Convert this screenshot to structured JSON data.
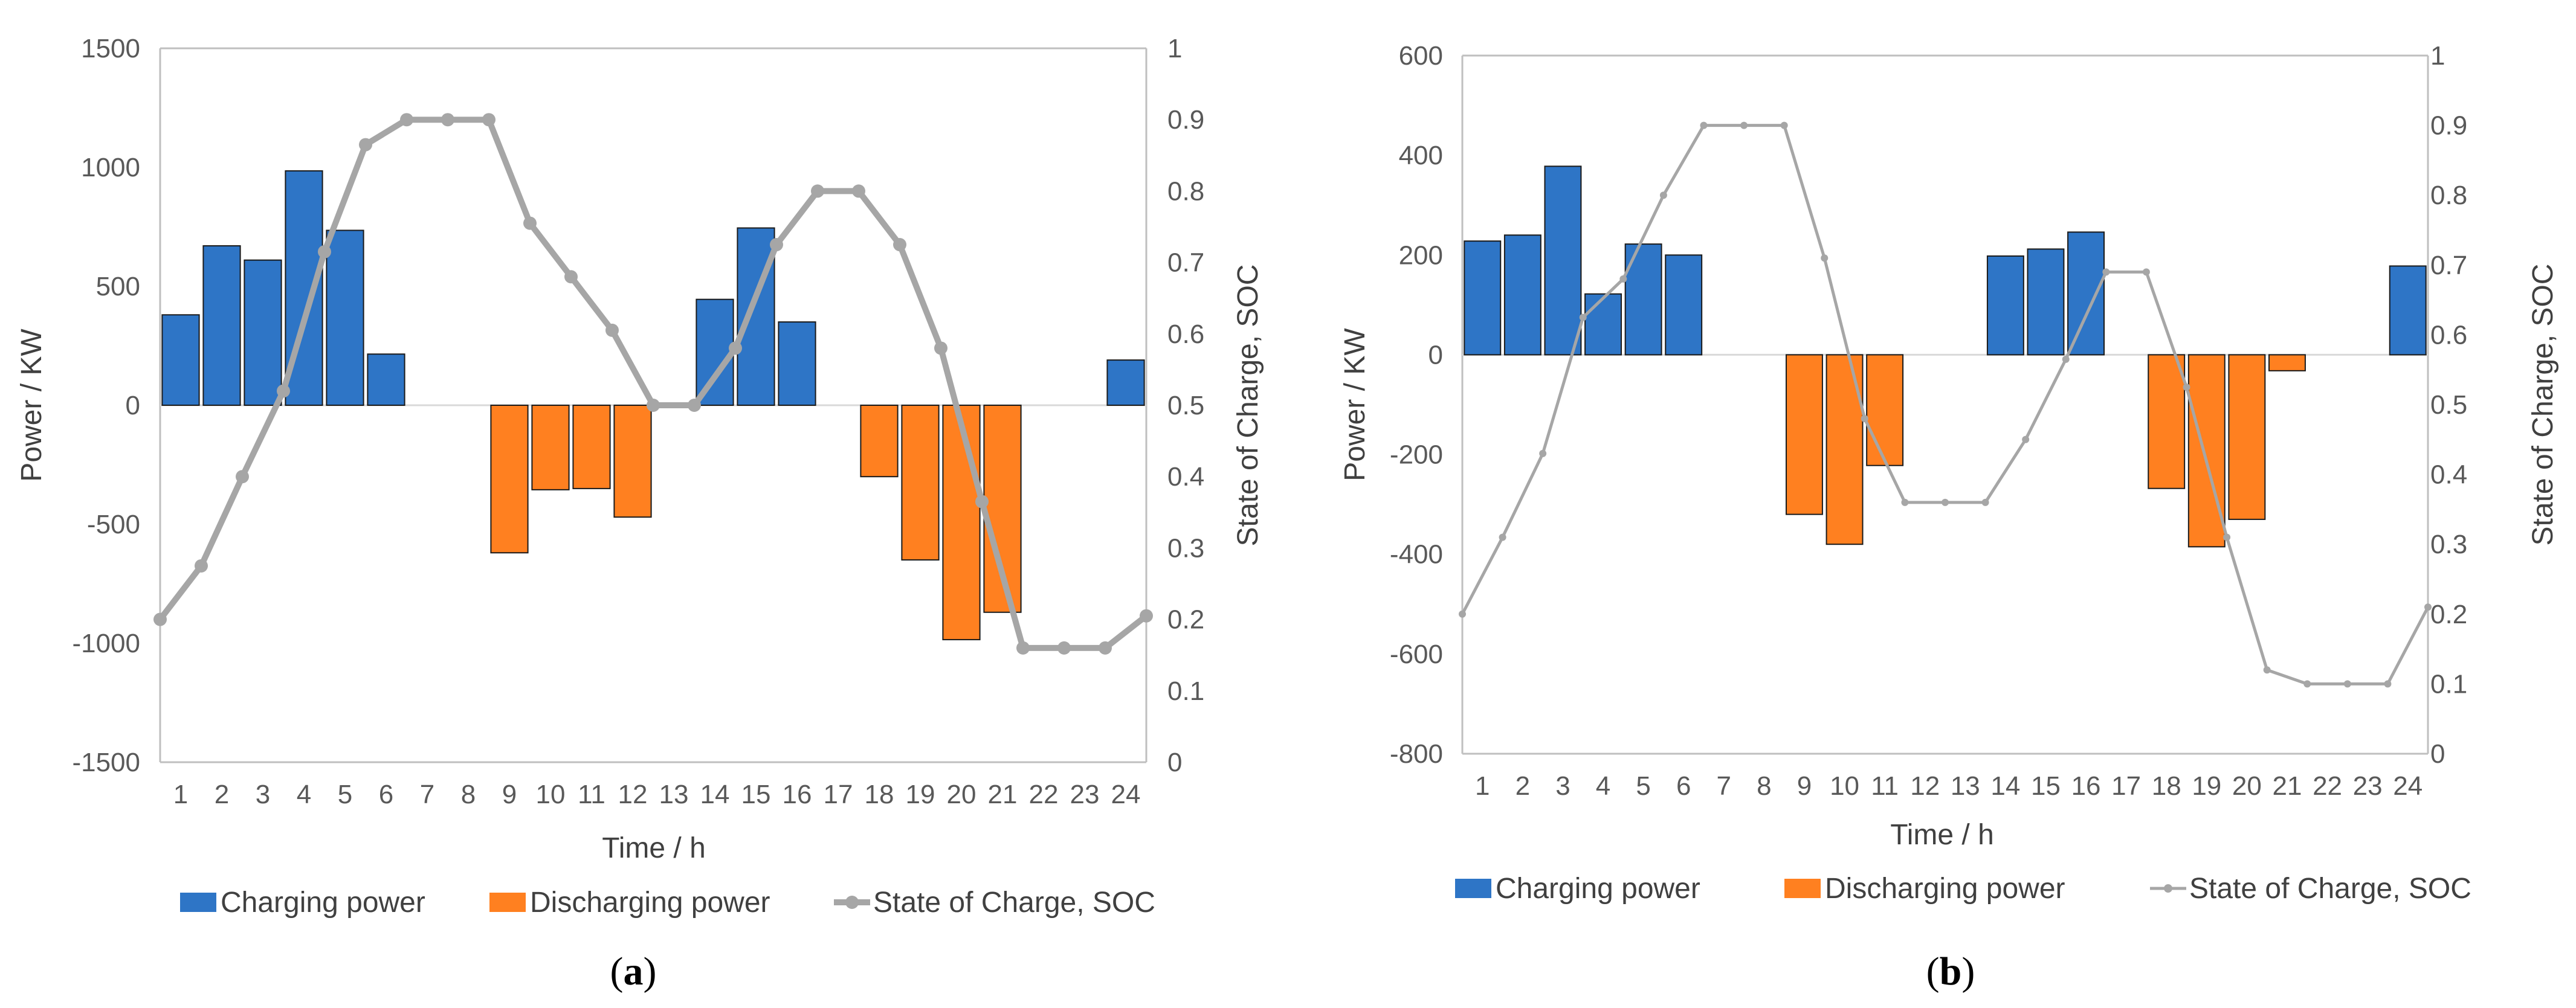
{
  "colors": {
    "charging": "#2E75C6",
    "discharging": "#FF8020",
    "soc": "#A6A6A6",
    "axis": "#BFBFBF",
    "text": "#595959"
  },
  "legend": {
    "charging": "Charging power",
    "discharging": "Discharging power",
    "soc": "State of Charge, SOC"
  },
  "chart_data": [
    {
      "type": "bar",
      "panel": "a",
      "panel_label": "a",
      "xlabel": "Time / h",
      "ylabel": "Power / KW",
      "y2label": "State of Charge, SOC",
      "categories": [
        "1",
        "2",
        "3",
        "4",
        "5",
        "6",
        "7",
        "8",
        "9",
        "10",
        "11",
        "12",
        "13",
        "14",
        "15",
        "16",
        "17",
        "18",
        "19",
        "20",
        "21",
        "22",
        "23",
        "24"
      ],
      "ylim": [
        -1500,
        1500
      ],
      "yticks": [
        -1500,
        -1000,
        -500,
        0,
        500,
        1000,
        1500
      ],
      "y2lim": [
        0,
        1
      ],
      "y2ticks": [
        "0",
        "0.1",
        "0.2",
        "0.3",
        "0.4",
        "0.5",
        "0.6",
        "0.7",
        "0.8",
        "0.9",
        "1"
      ],
      "series": [
        {
          "name": "Charging power",
          "values": [
            380,
            670,
            610,
            985,
            735,
            215,
            0,
            0,
            0,
            0,
            0,
            0,
            0,
            445,
            745,
            350,
            0,
            0,
            0,
            0,
            0,
            0,
            0,
            190
          ]
        },
        {
          "name": "Discharging power",
          "values": [
            0,
            0,
            0,
            0,
            0,
            0,
            0,
            0,
            -620,
            -355,
            -350,
            -470,
            0,
            0,
            0,
            0,
            0,
            -300,
            -650,
            -985,
            -870,
            0,
            0,
            0
          ]
        }
      ],
      "soc": {
        "x": [
          0,
          1,
          2,
          3,
          4,
          5,
          6,
          7,
          8,
          9,
          10,
          11,
          12,
          13,
          14,
          15,
          16,
          17,
          18,
          19,
          20,
          21,
          22,
          23,
          24
        ],
        "values": [
          0.2,
          0.275,
          0.4,
          0.52,
          0.715,
          0.865,
          0.9,
          0.9,
          0.9,
          0.755,
          0.68,
          0.605,
          0.5,
          0.5,
          0.58,
          0.725,
          0.8,
          0.8,
          0.725,
          0.58,
          0.365,
          0.16,
          0.16,
          0.16,
          0.205
        ]
      },
      "line_width": "thick"
    },
    {
      "type": "bar",
      "panel": "b",
      "panel_label": "b",
      "xlabel": "Time / h",
      "ylabel": "Power / KW",
      "y2label": "State of Charge, SOC",
      "categories": [
        "1",
        "2",
        "3",
        "4",
        "5",
        "6",
        "7",
        "8",
        "9",
        "10",
        "11",
        "12",
        "13",
        "14",
        "15",
        "16",
        "17",
        "18",
        "19",
        "20",
        "21",
        "22",
        "23",
        "24"
      ],
      "ylim": [
        -800,
        600
      ],
      "yticks": [
        -800,
        -600,
        -400,
        -200,
        0,
        200,
        400,
        600
      ],
      "y2lim": [
        0,
        1
      ],
      "y2ticks": [
        "0",
        "0.1",
        "0.2",
        "0.3",
        "0.4",
        "0.5",
        "0.6",
        "0.7",
        "0.8",
        "0.9",
        "1"
      ],
      "series": [
        {
          "name": "Charging power",
          "values": [
            228,
            240,
            378,
            122,
            222,
            200,
            0,
            0,
            0,
            0,
            0,
            0,
            0,
            198,
            212,
            246,
            0,
            0,
            0,
            0,
            0,
            0,
            0,
            178
          ]
        },
        {
          "name": "Discharging power",
          "values": [
            0,
            0,
            0,
            0,
            0,
            0,
            0,
            0,
            -320,
            -380,
            -222,
            0,
            0,
            0,
            0,
            0,
            0,
            -268,
            -385,
            -330,
            -32,
            0,
            0,
            0
          ]
        }
      ],
      "soc": {
        "x": [
          0,
          1,
          2,
          3,
          4,
          5,
          6,
          7,
          8,
          9,
          10,
          11,
          12,
          13,
          14,
          15,
          16,
          17,
          18,
          19,
          20,
          21,
          22,
          23,
          24
        ],
        "values": [
          0.2,
          0.31,
          0.43,
          0.625,
          0.68,
          0.8,
          0.9,
          0.9,
          0.9,
          0.71,
          0.48,
          0.36,
          0.36,
          0.36,
          0.45,
          0.565,
          0.69,
          0.69,
          0.525,
          0.31,
          0.12,
          0.1,
          0.1,
          0.1,
          0.21
        ]
      },
      "line_width": "thin"
    }
  ]
}
